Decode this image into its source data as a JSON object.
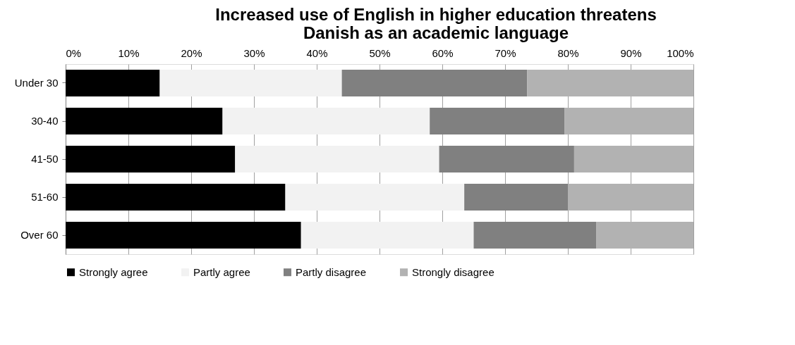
{
  "chart_data": {
    "type": "bar",
    "orientation": "horizontal",
    "stacked": true,
    "title": [
      "Increased use of English in higher education threatens",
      "Danish as an academic language"
    ],
    "categories": [
      "Under 30",
      "30-40",
      "41-50",
      "51-60",
      "Over 60"
    ],
    "series": [
      {
        "name": "Strongly agree",
        "color": "#000000",
        "values": [
          15,
          25,
          27,
          35,
          37.5
        ]
      },
      {
        "name": "Partly agree",
        "color": "#f2f2f2",
        "values": [
          29,
          33,
          32.5,
          28.5,
          27.5
        ]
      },
      {
        "name": "Partly disagree",
        "color": "#808080",
        "values": [
          29.5,
          21.5,
          21.5,
          16.5,
          19.5
        ]
      },
      {
        "name": "Strongly disagree",
        "color": "#b2b2b2",
        "values": [
          26.5,
          20.5,
          19,
          20,
          15.5
        ]
      }
    ],
    "xlim": [
      0,
      100
    ],
    "xticks": [
      {
        "value": 0,
        "label": "0%"
      },
      {
        "value": 10,
        "label": "10%"
      },
      {
        "value": 20,
        "label": "20%"
      },
      {
        "value": 30,
        "label": "30%"
      },
      {
        "value": 40,
        "label": "40%"
      },
      {
        "value": 50,
        "label": "50%"
      },
      {
        "value": 60,
        "label": "60%"
      },
      {
        "value": 70,
        "label": "70%"
      },
      {
        "value": 80,
        "label": "80%"
      },
      {
        "value": 90,
        "label": "90%"
      },
      {
        "value": 100,
        "label": "100%"
      }
    ],
    "grid": "x",
    "legend": "bottom"
  }
}
